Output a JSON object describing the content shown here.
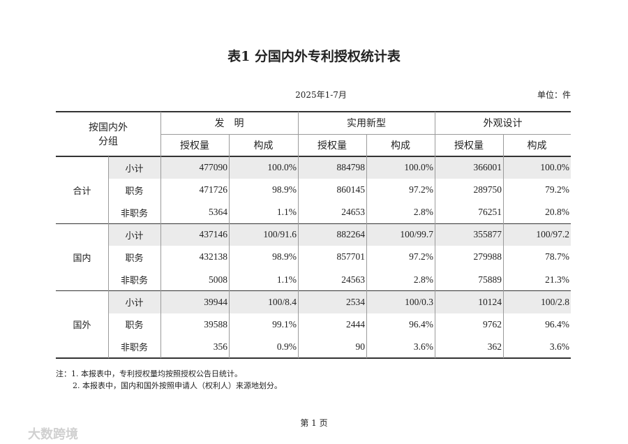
{
  "header": {
    "title": "表1  分国内外专利授权统计表",
    "period": "2025年1-7月",
    "unit": "单位：件"
  },
  "table": {
    "corner": [
      "按国内外",
      "分组"
    ],
    "types": [
      "发　明",
      "实用新型",
      "外观设计"
    ],
    "measures": [
      "授权量",
      "构成"
    ],
    "groups": [
      {
        "name": "合计",
        "rows": [
          {
            "label": "小计",
            "cells": [
              477090,
              "100.0%",
              884798,
              "100.0%",
              366001,
              "100.0%"
            ]
          },
          {
            "label": "职务",
            "cells": [
              471726,
              "98.9%",
              860145,
              "97.2%",
              289750,
              "79.2%"
            ]
          },
          {
            "label": "非职务",
            "cells": [
              5364,
              "1.1%",
              24653,
              "2.8%",
              76251,
              "20.8%"
            ]
          }
        ]
      },
      {
        "name": "国内",
        "rows": [
          {
            "label": "小计",
            "cells": [
              437146,
              "100/91.6",
              882264,
              "100/99.7",
              355877,
              "100/97.2"
            ]
          },
          {
            "label": "职务",
            "cells": [
              432138,
              "98.9%",
              857701,
              "97.2%",
              279988,
              "78.7%"
            ]
          },
          {
            "label": "非职务",
            "cells": [
              5008,
              "1.1%",
              24563,
              "2.8%",
              75889,
              "21.3%"
            ]
          }
        ]
      },
      {
        "name": "国外",
        "rows": [
          {
            "label": "小计",
            "cells": [
              39944,
              "100/8.4",
              2534,
              "100/0.3",
              10124,
              "100/2.8"
            ]
          },
          {
            "label": "职务",
            "cells": [
              39588,
              "99.1%",
              2444,
              "96.4%",
              9762,
              "96.4%"
            ]
          },
          {
            "label": "非职务",
            "cells": [
              356,
              "0.9%",
              90,
              "3.6%",
              362,
              "3.6%"
            ]
          }
        ]
      }
    ]
  },
  "notes": [
    "注：1. 本报表中，专利授权量均按照授权公告日统计。",
    "2. 本报表中，国内和国外按照申请人（权利人）来源地划分。"
  ],
  "footer": "第 1 页",
  "watermark": "大数跨境"
}
